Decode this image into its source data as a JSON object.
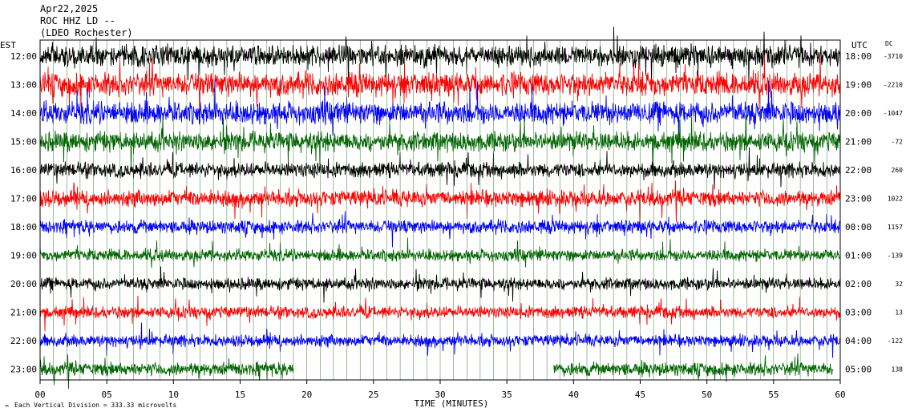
{
  "header": {
    "date": "Apr22,2025",
    "station": "ROC HHZ LD --",
    "location": "(LDEO Rochester)"
  },
  "left_axis_title": "EST",
  "right_axis_title": "UTC",
  "dc_title": "DC",
  "x_axis_title": "TIME (MINUTES)",
  "footer_note": "Each Vertical Division =  333.33 microvolts",
  "colors": {
    "black": "#000000",
    "red": "#ff0000",
    "blue": "#0000ff",
    "green": "#006400",
    "grid": "#3a7a3a"
  },
  "chart_data": {
    "type": "line",
    "title": "",
    "xlabel": "TIME (MINUTES)",
    "xlim": [
      0,
      60
    ],
    "x_ticks": [
      "00",
      "05",
      "10",
      "15",
      "20",
      "25",
      "30",
      "35",
      "40",
      "45",
      "50",
      "55",
      "60"
    ],
    "series": [
      {
        "est": "12:00",
        "utc": "18:00",
        "dc": "-3710",
        "color": "black",
        "amplitude": 1.4,
        "start_min": 0,
        "end_min": 60
      },
      {
        "est": "13:00",
        "utc": "19:00",
        "dc": "-2210",
        "color": "red",
        "amplitude": 1.6,
        "start_min": 0,
        "end_min": 60
      },
      {
        "est": "14:00",
        "utc": "20:00",
        "dc": "-1047",
        "color": "blue",
        "amplitude": 1.5,
        "start_min": 0,
        "end_min": 60
      },
      {
        "est": "15:00",
        "utc": "21:00",
        "dc": "-72",
        "color": "green",
        "amplitude": 1.3,
        "start_min": 0,
        "end_min": 60
      },
      {
        "est": "16:00",
        "utc": "22:00",
        "dc": "260",
        "color": "black",
        "amplitude": 1.0,
        "start_min": 0,
        "end_min": 60
      },
      {
        "est": "17:00",
        "utc": "23:00",
        "dc": "1022",
        "color": "red",
        "amplitude": 1.1,
        "start_min": 0,
        "end_min": 60
      },
      {
        "est": "18:00",
        "utc": "00:00",
        "dc": "1157",
        "color": "blue",
        "amplitude": 0.9,
        "start_min": 0,
        "end_min": 60
      },
      {
        "est": "19:00",
        "utc": "01:00",
        "dc": "-139",
        "color": "green",
        "amplitude": 0.8,
        "start_min": 0,
        "end_min": 60
      },
      {
        "est": "20:00",
        "utc": "02:00",
        "dc": "32",
        "color": "black",
        "amplitude": 0.8,
        "start_min": 0,
        "end_min": 60
      },
      {
        "est": "21:00",
        "utc": "03:00",
        "dc": "13",
        "color": "red",
        "amplitude": 0.8,
        "start_min": 0,
        "end_min": 60
      },
      {
        "est": "22:00",
        "utc": "04:00",
        "dc": "-122",
        "color": "blue",
        "amplitude": 0.8,
        "start_min": 0,
        "end_min": 60
      },
      {
        "est": "23:00",
        "utc": "05:00",
        "dc": "138",
        "color": "green",
        "amplitude": 0.9,
        "start_min": 0,
        "end_min": 59.5,
        "gap": [
          19,
          38.5
        ]
      }
    ]
  }
}
